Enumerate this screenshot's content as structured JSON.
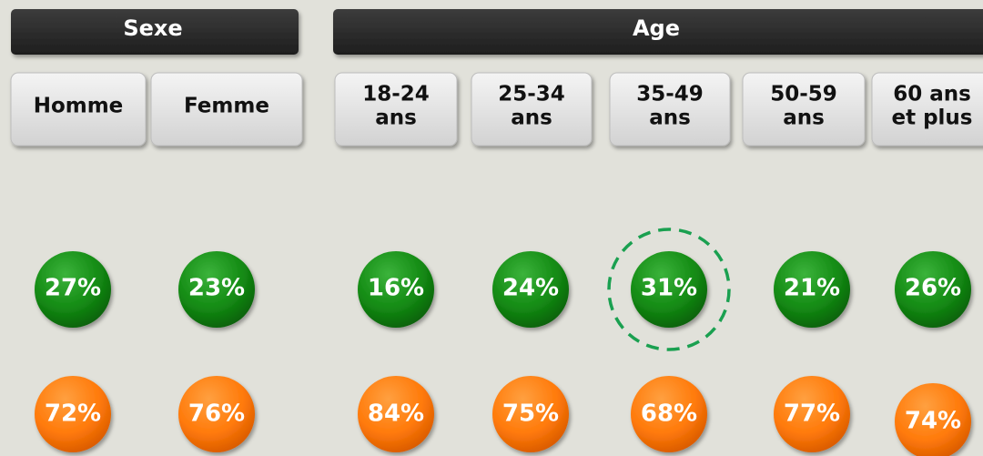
{
  "headers": [
    "Sexe",
    "Age"
  ],
  "columns": [
    {
      "label": [
        "Homme"
      ],
      "green": "27%",
      "orange": "72%"
    },
    {
      "label": [
        "Femme"
      ],
      "green": "23%",
      "orange": "76%"
    },
    {
      "label": [
        "18-24",
        "ans"
      ],
      "green": "16%",
      "orange": "84%"
    },
    {
      "label": [
        "25-34",
        "ans"
      ],
      "green": "24%",
      "orange": "75%"
    },
    {
      "label": [
        "35-49",
        "ans"
      ],
      "green": "31%",
      "orange": "68%"
    },
    {
      "label": [
        "50-59",
        "ans"
      ],
      "green": "21%",
      "orange": "77%"
    },
    {
      "label": [
        "60 ans",
        "et plus"
      ],
      "green": "26%",
      "orange": "74%"
    }
  ]
}
